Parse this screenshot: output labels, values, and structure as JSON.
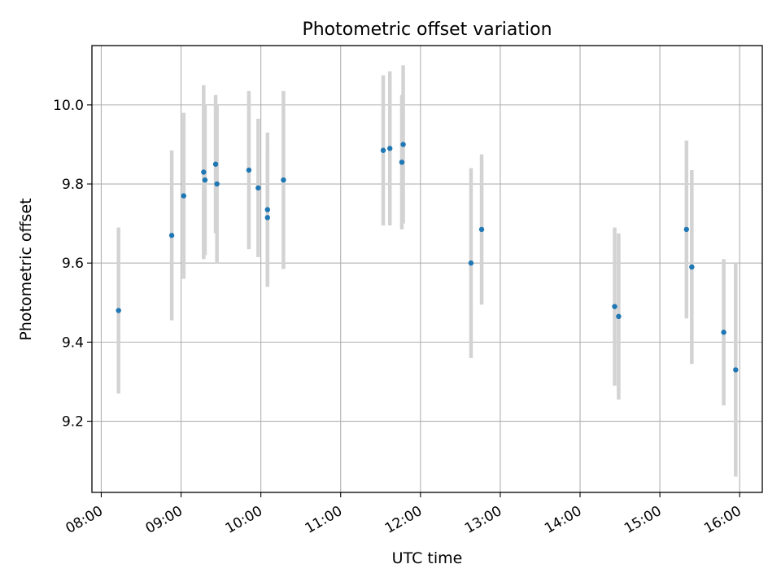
{
  "chart_data": {
    "type": "scatter",
    "title": "Photometric offset variation",
    "xlabel": "UTC time",
    "ylabel": "Photometric offset",
    "x_unit": "UTC time of day",
    "xlim": [
      "07:53",
      "16:17"
    ],
    "ylim": [
      9.02,
      10.15
    ],
    "xticks": [
      "08:00",
      "09:00",
      "10:00",
      "11:00",
      "12:00",
      "13:00",
      "14:00",
      "15:00",
      "16:00"
    ],
    "yticks": [
      "9.2",
      "9.4",
      "9.6",
      "9.8",
      "10.0"
    ],
    "grid": true,
    "error_bars": true,
    "series": [
      {
        "marker_color": "#1f77b4",
        "errorbar_color": "#d3d3d3",
        "points": [
          {
            "x": "08:13",
            "y": 9.48,
            "err": 0.21
          },
          {
            "x": "08:53",
            "y": 9.67,
            "err": 0.215
          },
          {
            "x": "09:02",
            "y": 9.77,
            "err": 0.21
          },
          {
            "x": "09:17",
            "y": 9.83,
            "err": 0.22
          },
          {
            "x": "09:18",
            "y": 9.81,
            "err": 0.19
          },
          {
            "x": "09:26",
            "y": 9.85,
            "err": 0.175
          },
          {
            "x": "09:27",
            "y": 9.8,
            "err": 0.2
          },
          {
            "x": "09:51",
            "y": 9.835,
            "err": 0.2
          },
          {
            "x": "09:58",
            "y": 9.79,
            "err": 0.175
          },
          {
            "x": "10:05",
            "y": 9.735,
            "err": 0.195
          },
          {
            "x": "10:05",
            "y": 9.715,
            "err": 0.175
          },
          {
            "x": "10:17",
            "y": 9.81,
            "err": 0.225
          },
          {
            "x": "11:32",
            "y": 9.885,
            "err": 0.19
          },
          {
            "x": "11:37",
            "y": 9.89,
            "err": 0.195
          },
          {
            "x": "11:46",
            "y": 9.855,
            "err": 0.17
          },
          {
            "x": "11:47",
            "y": 9.9,
            "err": 0.2
          },
          {
            "x": "12:38",
            "y": 9.6,
            "err": 0.24
          },
          {
            "x": "12:46",
            "y": 9.685,
            "err": 0.19
          },
          {
            "x": "14:26",
            "y": 9.49,
            "err": 0.2
          },
          {
            "x": "14:29",
            "y": 9.465,
            "err": 0.21
          },
          {
            "x": "15:20",
            "y": 9.685,
            "err": 0.225
          },
          {
            "x": "15:24",
            "y": 9.59,
            "err": 0.245
          },
          {
            "x": "15:48",
            "y": 9.425,
            "err": 0.185
          },
          {
            "x": "15:57",
            "y": 9.33,
            "err": 0.27
          }
        ]
      }
    ]
  }
}
